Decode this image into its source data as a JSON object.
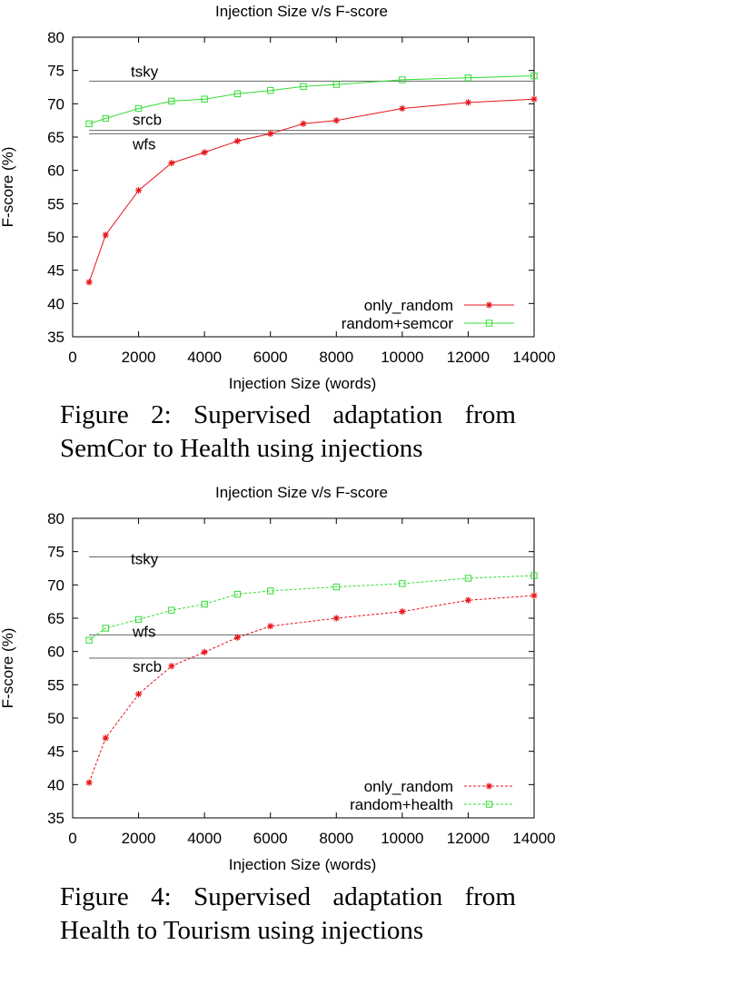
{
  "chart_data": [
    {
      "type": "line",
      "title": "Injection Size v/s F-score",
      "xlabel": "Injection Size (words)",
      "ylabel": "F-score (%)",
      "xlim": [
        0,
        14000
      ],
      "ylim": [
        35,
        80
      ],
      "x_ticks": [
        0,
        2000,
        4000,
        6000,
        8000,
        10000,
        12000,
        14000
      ],
      "y_ticks": [
        35,
        40,
        45,
        50,
        55,
        60,
        65,
        70,
        75,
        80
      ],
      "legend_position": "bottom-right",
      "series": [
        {
          "name": "only_random",
          "color": "#e8141a",
          "dashed": false,
          "marker": "star",
          "x": [
            500,
            1000,
            2000,
            3000,
            4000,
            5000,
            6000,
            7000,
            8000,
            10000,
            12000,
            14000
          ],
          "y": [
            43.2,
            50.3,
            57.0,
            61.1,
            62.7,
            64.4,
            65.5,
            67.0,
            67.5,
            69.3,
            70.2,
            70.7
          ]
        },
        {
          "name": "random+semcor",
          "color": "#33dd33",
          "dashed": false,
          "marker": "square",
          "x": [
            500,
            1000,
            2000,
            3000,
            4000,
            5000,
            6000,
            7000,
            8000,
            10000,
            12000,
            14000
          ],
          "y": [
            67.0,
            67.8,
            69.3,
            70.4,
            70.7,
            71.5,
            72.0,
            72.6,
            72.9,
            73.6,
            73.9,
            74.2
          ]
        }
      ],
      "reference_lines": [
        {
          "label": "tsky",
          "value": 73.4
        },
        {
          "label": "srcb",
          "value": 66.0
        },
        {
          "label": "wfs",
          "value": 65.5
        }
      ]
    },
    {
      "type": "line",
      "title": "Injection Size v/s F-score",
      "xlabel": "Injection Size (words)",
      "ylabel": "F-score (%)",
      "xlim": [
        0,
        14000
      ],
      "ylim": [
        35,
        80
      ],
      "x_ticks": [
        0,
        2000,
        4000,
        6000,
        8000,
        10000,
        12000,
        14000
      ],
      "y_ticks": [
        35,
        40,
        45,
        50,
        55,
        60,
        65,
        70,
        75,
        80
      ],
      "legend_position": "bottom-right",
      "series": [
        {
          "name": "only_random",
          "color": "#e8141a",
          "dashed": true,
          "marker": "star",
          "x": [
            500,
            1000,
            2000,
            3000,
            4000,
            5000,
            6000,
            8000,
            10000,
            12000,
            14000
          ],
          "y": [
            40.3,
            47.0,
            53.6,
            57.8,
            59.9,
            62.1,
            63.8,
            65.0,
            66.0,
            67.7,
            68.4
          ]
        },
        {
          "name": "random+health",
          "color": "#33dd33",
          "dashed": true,
          "marker": "square",
          "x": [
            500,
            1000,
            2000,
            3000,
            4000,
            5000,
            6000,
            8000,
            10000,
            12000,
            14000
          ],
          "y": [
            61.7,
            63.5,
            64.8,
            66.2,
            67.1,
            68.6,
            69.1,
            69.7,
            70.2,
            71.0,
            71.4
          ]
        }
      ],
      "reference_lines": [
        {
          "label": "tsky",
          "value": 74.2
        },
        {
          "label": "wfs",
          "value": 62.5
        },
        {
          "label": "srcb",
          "value": 59.0
        }
      ]
    }
  ],
  "captions": [
    "Figure 2:  Supervised adaptation from SemCor to Health using injections",
    "Figure 4:  Supervised adaptation from Health to Tourism using injections"
  ]
}
